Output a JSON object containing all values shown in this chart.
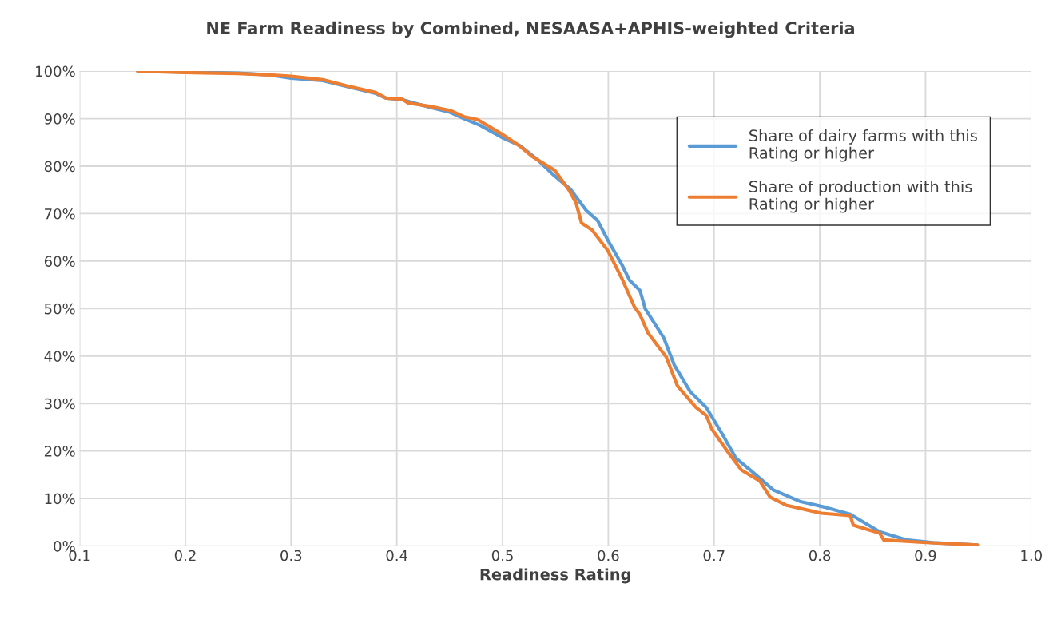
{
  "chart_data": {
    "type": "line",
    "title": "NE Farm Readiness by Combined, NESAASA+APHIS-weighted Criteria",
    "xlabel": "Readiness Rating",
    "series": [
      {
        "name": "Share of dairy farms with this Rating or higher",
        "color": "#5b9bd5",
        "x": [
          0.155,
          0.2,
          0.25,
          0.28,
          0.3,
          0.33,
          0.3525,
          0.38,
          0.39,
          0.405,
          0.431,
          0.4507,
          0.4636,
          0.4787,
          0.499,
          0.5165,
          0.534,
          0.549,
          0.564,
          0.579,
          0.59,
          0.5996,
          0.6125,
          0.62,
          0.63,
          0.635,
          0.6525,
          0.6624,
          0.6775,
          0.6926,
          0.7077,
          0.7206,
          0.7357,
          0.756,
          0.781,
          0.806,
          0.8287,
          0.8566,
          0.8816,
          0.907,
          0.949
        ],
        "values": [
          100,
          99.8,
          99.6,
          99.2,
          98.5,
          98.0,
          96.8,
          95.3,
          94.3,
          94.0,
          92.4,
          91.3,
          90.0,
          88.6,
          86.1,
          84.3,
          81.2,
          78.0,
          75.2,
          70.7,
          68.5,
          64.4,
          59.4,
          56.0,
          53.8,
          49.9,
          43.8,
          38.1,
          32.5,
          29.2,
          23.6,
          18.5,
          15.7,
          11.8,
          9.4,
          8.1,
          6.7,
          3.0,
          1.3,
          0.7,
          0.2
        ]
      },
      {
        "name": "Share of production with this Rating or higher",
        "color": "#ed7d31",
        "x": [
          0.155,
          0.2,
          0.25,
          0.28,
          0.3,
          0.33,
          0.3525,
          0.38,
          0.39,
          0.405,
          0.4107,
          0.431,
          0.4507,
          0.4636,
          0.4764,
          0.499,
          0.5165,
          0.5276,
          0.5495,
          0.5627,
          0.5694,
          0.5747,
          0.5845,
          0.5996,
          0.6125,
          0.6246,
          0.63,
          0.6375,
          0.6548,
          0.6654,
          0.6828,
          0.6926,
          0.6979,
          0.7153,
          0.7259,
          0.7432,
          0.753,
          0.768,
          0.8014,
          0.8287,
          0.8317,
          0.8566,
          0.8604,
          0.894,
          0.949
        ],
        "values": [
          100,
          99.7,
          99.5,
          99.2,
          98.9,
          98.2,
          96.9,
          95.5,
          94.3,
          94.1,
          93.3,
          92.6,
          91.7,
          90.4,
          89.8,
          86.8,
          84.2,
          82.1,
          79.1,
          75.0,
          72.3,
          68.0,
          66.6,
          62.2,
          56.5,
          50.4,
          48.7,
          44.9,
          39.8,
          33.7,
          29.2,
          27.5,
          24.6,
          19.1,
          16.0,
          13.7,
          10.3,
          8.6,
          6.9,
          6.4,
          4.4,
          2.7,
          1.3,
          0.8,
          0.2
        ]
      }
    ],
    "xlim": [
      0.1,
      1.0
    ],
    "xticks": [
      0.1,
      0.2,
      0.3,
      0.4,
      0.5,
      0.6,
      0.7,
      0.8,
      0.9,
      {
        "value": 1.0,
        "label": "1.0"
      }
    ],
    "ylim": [
      0,
      100
    ],
    "yticks": [
      {
        "value": 0,
        "label": "0%"
      },
      {
        "value": 10,
        "label": "10%"
      },
      {
        "value": 20,
        "label": "20%"
      },
      {
        "value": 30,
        "label": "30%"
      },
      {
        "value": 40,
        "label": "40%"
      },
      {
        "value": 50,
        "label": "50%"
      },
      {
        "value": 60,
        "label": "60%"
      },
      {
        "value": 70,
        "label": "70%"
      },
      {
        "value": 80,
        "label": "80%"
      },
      {
        "value": 90,
        "label": "90%"
      },
      {
        "value": 100,
        "label": "100%"
      }
    ],
    "grid": true,
    "legend": "top right",
    "marker": "none",
    "line_style": "solid"
  }
}
